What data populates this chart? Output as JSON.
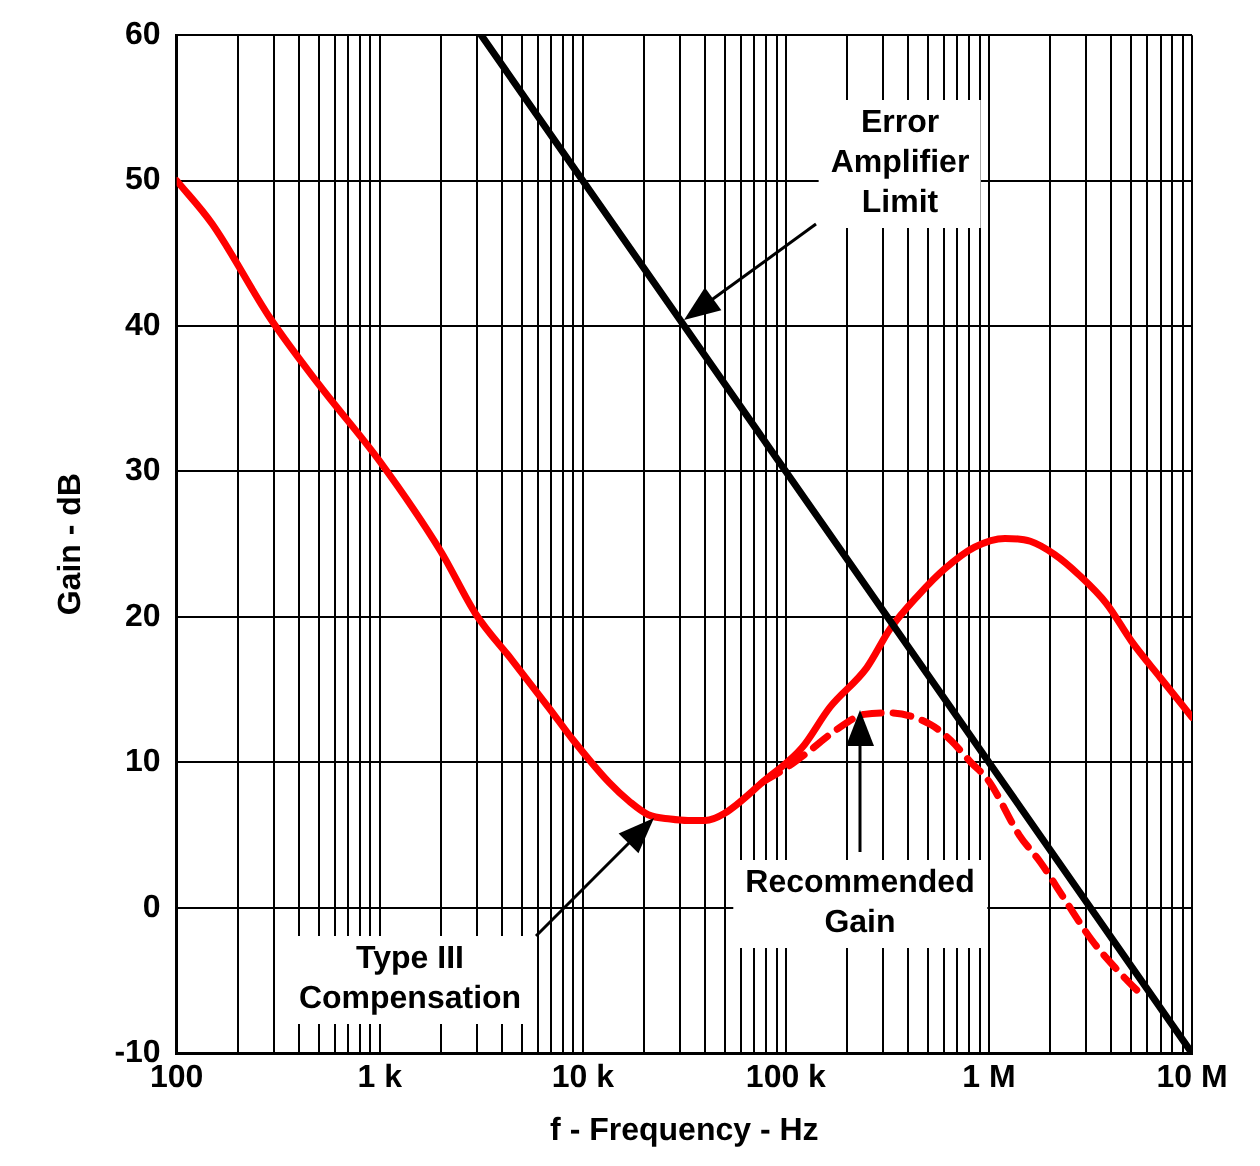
{
  "chart_data": {
    "type": "line",
    "xlabel": "f - Frequency - Hz",
    "ylabel": "Gain - dB",
    "log": "x",
    "grid": true,
    "legend": false,
    "marker": "none",
    "xlim": [
      100,
      10000000
    ],
    "ylim": [
      -10,
      60
    ],
    "xticks": [
      {
        "value": 100,
        "label": "100"
      },
      {
        "value": 200,
        "label": null
      },
      {
        "value": 300,
        "label": null
      },
      {
        "value": 400,
        "label": null
      },
      {
        "value": 500,
        "label": null
      },
      {
        "value": 600,
        "label": null
      },
      {
        "value": 700,
        "label": null
      },
      {
        "value": 800,
        "label": null
      },
      {
        "value": 900,
        "label": null
      },
      {
        "value": 1000,
        "label": "1 k"
      },
      {
        "value": 2000,
        "label": null
      },
      {
        "value": 3000,
        "label": null
      },
      {
        "value": 4000,
        "label": null
      },
      {
        "value": 5000,
        "label": null
      },
      {
        "value": 6000,
        "label": null
      },
      {
        "value": 7000,
        "label": null
      },
      {
        "value": 8000,
        "label": null
      },
      {
        "value": 9000,
        "label": null
      },
      {
        "value": 10000,
        "label": "10 k"
      },
      {
        "value": 20000,
        "label": null
      },
      {
        "value": 30000,
        "label": null
      },
      {
        "value": 40000,
        "label": null
      },
      {
        "value": 50000,
        "label": null
      },
      {
        "value": 60000,
        "label": null
      },
      {
        "value": 70000,
        "label": null
      },
      {
        "value": 80000,
        "label": null
      },
      {
        "value": 90000,
        "label": null
      },
      {
        "value": 100000,
        "label": "100 k"
      },
      {
        "value": 200000,
        "label": null
      },
      {
        "value": 300000,
        "label": null
      },
      {
        "value": 400000,
        "label": null
      },
      {
        "value": 500000,
        "label": null
      },
      {
        "value": 600000,
        "label": null
      },
      {
        "value": 700000,
        "label": null
      },
      {
        "value": 800000,
        "label": null
      },
      {
        "value": 900000,
        "label": null
      },
      {
        "value": 1000000,
        "label": "1 M"
      },
      {
        "value": 2000000,
        "label": null
      },
      {
        "value": 3000000,
        "label": null
      },
      {
        "value": 4000000,
        "label": null
      },
      {
        "value": 5000000,
        "label": null
      },
      {
        "value": 6000000,
        "label": null
      },
      {
        "value": 7000000,
        "label": null
      },
      {
        "value": 8000000,
        "label": null
      },
      {
        "value": 9000000,
        "label": null
      },
      {
        "value": 10000000,
        "label": "10 M"
      }
    ],
    "yticks": [
      -10,
      0,
      10,
      20,
      30,
      40,
      50,
      60
    ],
    "series": [
      {
        "color": "#000000",
        "line_style": "solid",
        "x": [
          3162,
          10000000
        ],
        "values": [
          60,
          -10
        ]
      },
      {
        "color": "#ff0000",
        "line_style": "solid",
        "x": [
          100,
          150,
          290,
          500,
          1000,
          2000,
          2970,
          4500,
          6850,
          9000,
          13500,
          17000,
          21000,
          27000,
          33000,
          40000,
          50000,
          77800,
          120000,
          165000,
          250000,
          327000,
          450000,
          605000,
          850000,
          1200000,
          1600000,
          2100000,
          2770000,
          3800000,
          5050000,
          7000000,
          10000000
        ],
        "values": [
          50,
          47,
          40.5,
          36,
          30.7,
          24.5,
          20.2,
          17,
          13.7,
          11.5,
          8.6,
          7.3,
          6.4,
          6.1,
          6.0,
          6.0,
          6.5,
          8.7,
          11,
          13.8,
          16.5,
          19.2,
          21.5,
          23.3,
          24.8,
          25.4,
          25.2,
          24.3,
          22.9,
          20.9,
          18.3,
          15.8,
          13.1
        ]
      },
      {
        "color": "#ff0000",
        "line_style": "dashed",
        "x": [
          78000,
          100000,
          123000,
          180000,
          243000,
          327000,
          516000,
          650000,
          815000,
          1000000,
          1410000,
          1800000,
          2380000,
          3200000,
          4300000,
          5650000
        ],
        "values": [
          8.7,
          9.6,
          10.5,
          12.3,
          13.3,
          13.4,
          12.6,
          11.5,
          10,
          8.7,
          5.0,
          3.1,
          0.5,
          -2.2,
          -4.3,
          -6.0
        ]
      }
    ],
    "annotations": [
      "Error\nAmplifier\nLimit",
      "Type III\nCompensation",
      "Recommended\nGain"
    ]
  }
}
